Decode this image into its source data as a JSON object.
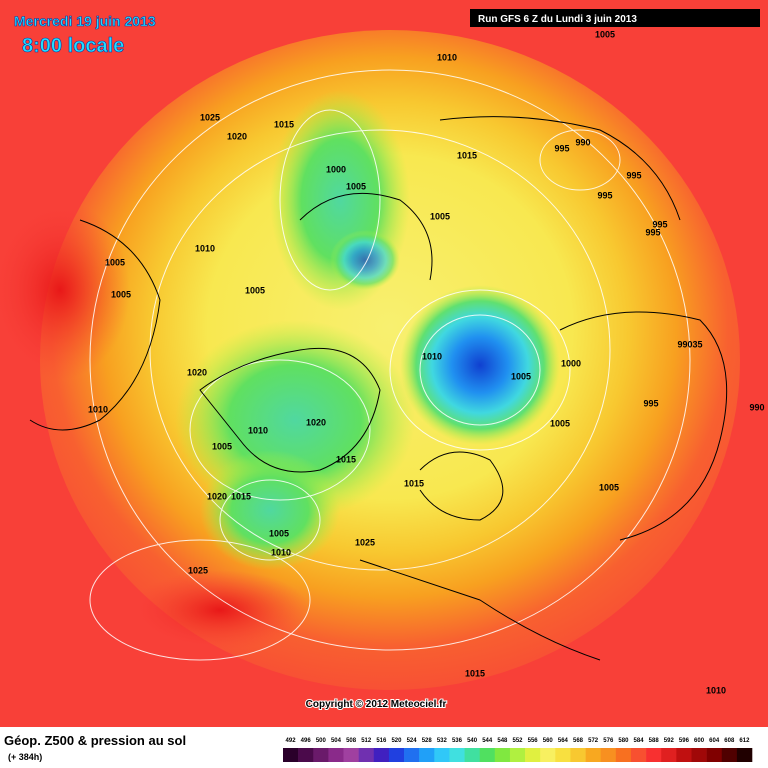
{
  "header": {
    "date": "Mercredi 19 juin 2013",
    "time": "8:00 locale",
    "run": "Run GFS 6 Z du Lundi 3 juin 2013"
  },
  "map": {
    "copyright": "Copyright © 2012 Meteociel.fr",
    "isobar_labels": [
      "1005",
      "1010",
      "1025",
      "1020",
      "1015",
      "1015",
      "990",
      "995",
      "995",
      "1000",
      "1005",
      "995",
      "1005",
      "995",
      "995",
      "1010",
      "1005",
      "1005",
      "1005",
      "99035",
      "1010",
      "1000",
      "1020",
      "1005",
      "995",
      "990",
      "1010",
      "1020",
      "1010",
      "1005",
      "1005",
      "1015",
      "1015",
      "1005",
      "1020",
      "1015",
      "1005",
      "1025",
      "1010",
      "1025",
      "1015",
      "1010"
    ]
  },
  "legend": {
    "title": "Géop. Z500 & pression au sol",
    "subtitle": "(+ 384h)",
    "scale": [
      492,
      496,
      500,
      504,
      508,
      512,
      516,
      520,
      524,
      528,
      532,
      536,
      540,
      544,
      548,
      552,
      556,
      560,
      564,
      568,
      572,
      576,
      580,
      584,
      588,
      592,
      596,
      600,
      604,
      608,
      612
    ],
    "colors": [
      "#2a002a",
      "#4b0a4b",
      "#6a1a6a",
      "#8a2a8a",
      "#a040a0",
      "#7030b0",
      "#4020c0",
      "#2040e0",
      "#2070f0",
      "#20a0f8",
      "#30c8f8",
      "#40e0e0",
      "#40e0a0",
      "#50e060",
      "#80e840",
      "#b0f040",
      "#e0f040",
      "#f8f060",
      "#f8e040",
      "#f8c830",
      "#f8a820",
      "#f89020",
      "#f87020",
      "#f85030",
      "#f83030",
      "#e02020",
      "#c01010",
      "#a00808",
      "#800000",
      "#500000",
      "#200000"
    ]
  }
}
